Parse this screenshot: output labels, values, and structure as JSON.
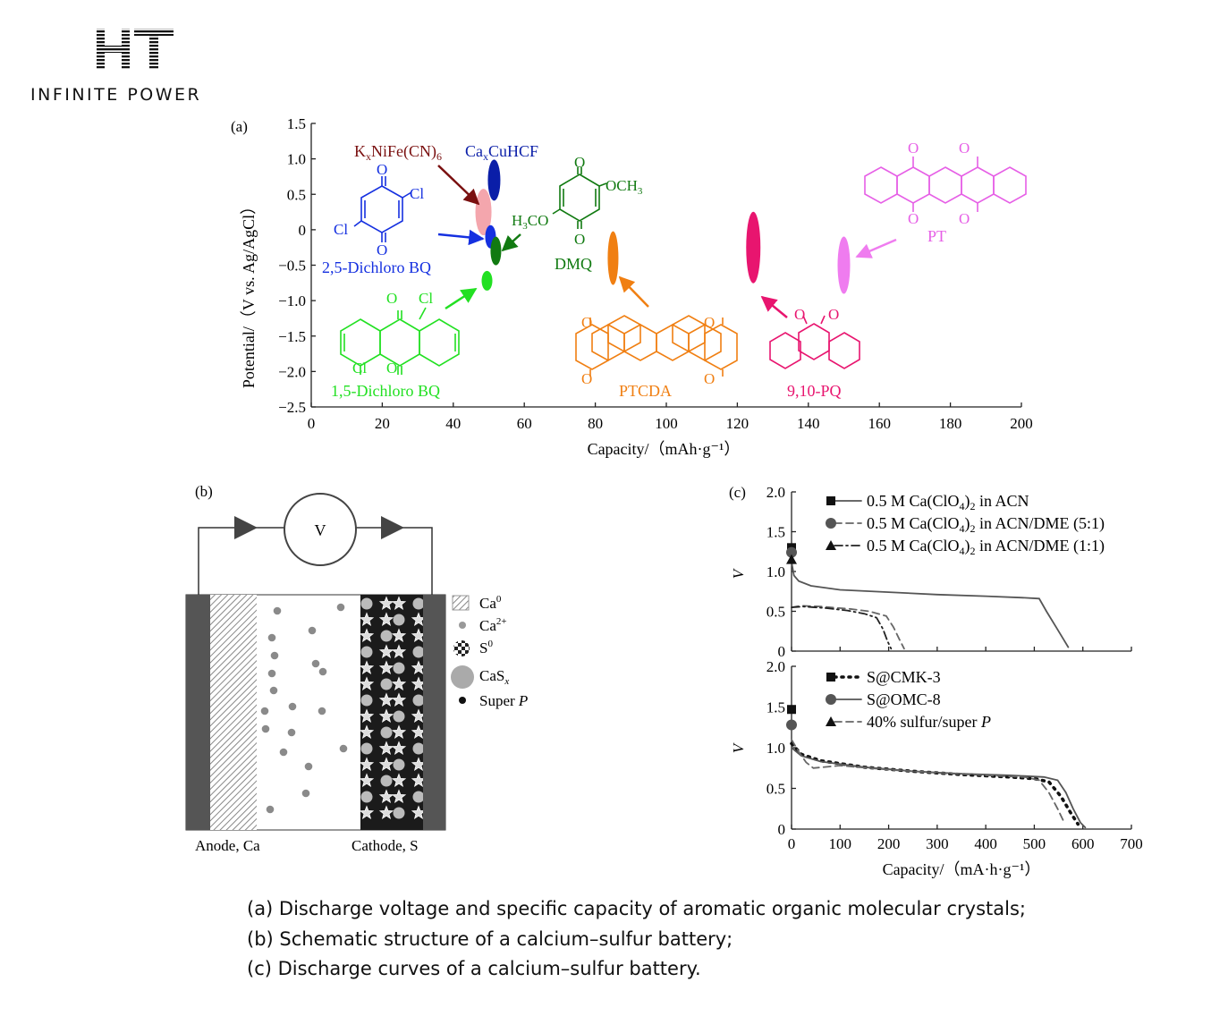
{
  "logo": {
    "mark": "HT",
    "tagline": "INFINITE POWER"
  },
  "caption": [
    "(a) Discharge voltage and specific capacity of aromatic organic molecular crystals;",
    "(b) Schematic structure of a calcium–sulfur battery;",
    "(c) Discharge curves of a calcium–sulfur battery."
  ],
  "panel_a": {
    "tag": "(a)",
    "xlabel": "Capacity/（mAh·g⁻¹）",
    "ylabel": "Potential/（V vs. Ag/AgCl）",
    "labels": {
      "knife": "K",
      "cacuhcf": "Ca",
      "bq": "2,5-Dichloro BQ",
      "dmq": "DMQ",
      "aq": "1,5-Dichloro BQ",
      "ptcda": "PTCDA",
      "pq": "9,10-PQ",
      "pt": "PT",
      "och3": "OCH",
      "h3co": "H",
      "cl": "Cl",
      "o": "O"
    }
  },
  "panel_b": {
    "tag": "(b)",
    "meter": "V",
    "anode": "Anode, Ca",
    "cathode": "Cathode, S",
    "legend": [
      {
        "label": "Ca",
        "sup": "0"
      },
      {
        "label": "Ca",
        "sup": "2+"
      },
      {
        "label": "S",
        "sup": "0"
      },
      {
        "label": "CaS",
        "sub": "x"
      },
      {
        "label": "Super ",
        "italic": "P"
      }
    ]
  },
  "panel_c": {
    "tag": "(c)",
    "ylabel": "V",
    "xlabel": "Capacity/（mA·h·g⁻¹）"
  },
  "chart_data": [
    {
      "type": "scatter",
      "xlabel": "Capacity/（mAh·g⁻¹）",
      "ylabel": "Potential/（V vs. Ag/AgCl）",
      "xlim": [
        0,
        200
      ],
      "ylim": [
        -2.5,
        1.5
      ],
      "xticks": [
        0,
        20,
        40,
        60,
        80,
        100,
        120,
        140,
        160,
        180,
        200
      ],
      "yticks": [
        1.5,
        1.0,
        0.5,
        0,
        -0.5,
        -1.0,
        -1.5,
        -2.0,
        -2.5
      ],
      "points": [
        {
          "name": "KxNiFe(CN)6",
          "x": 48.5,
          "y": 0.25,
          "color": "#f4a6ad"
        },
        {
          "name": "CaxCuHCF",
          "x": 51.5,
          "y": 0.7,
          "color": "#0a1ea8"
        },
        {
          "name": "2,5-Dichloro BQ",
          "x": 50.5,
          "y": -0.1,
          "color": "#1530e0"
        },
        {
          "name": "DMQ",
          "x": 52,
          "y": -0.3,
          "color": "#117a11"
        },
        {
          "name": "1,5-Dichloro BQ",
          "x": 49.5,
          "y": -0.72,
          "color": "#22e022"
        },
        {
          "name": "PTCDA",
          "x": 85,
          "y": -0.4,
          "color": "#f07f12"
        },
        {
          "name": "9,10-PQ",
          "x": 124.5,
          "y": -0.25,
          "color": "#e8156f"
        },
        {
          "name": "PT",
          "x": 150,
          "y": -0.5,
          "color": "#ef7cef"
        }
      ]
    },
    {
      "type": "line",
      "xlim": [
        0,
        700
      ],
      "ylim": [
        0,
        2.0
      ],
      "yticks": [
        0,
        0.5,
        1.0,
        1.5,
        2.0
      ],
      "series": [
        {
          "name": "0.5 M Ca(ClO4)2 in ACN",
          "style": "solid",
          "marker": "square",
          "points": [
            [
              0,
              1.12
            ],
            [
              5,
              0.95
            ],
            [
              15,
              0.88
            ],
            [
              40,
              0.82
            ],
            [
              100,
              0.77
            ],
            [
              200,
              0.74
            ],
            [
              300,
              0.71
            ],
            [
              400,
              0.69
            ],
            [
              480,
              0.67
            ],
            [
              510,
              0.66
            ],
            [
              525,
              0.5
            ],
            [
              545,
              0.3
            ],
            [
              560,
              0.15
            ],
            [
              570,
              0.05
            ]
          ]
        },
        {
          "name": "0.5 M Ca(ClO4)2 in ACN/DME (5:1)",
          "style": "dashed",
          "marker": "circle",
          "points": [
            [
              0,
              0.55
            ],
            [
              20,
              0.57
            ],
            [
              60,
              0.56
            ],
            [
              120,
              0.53
            ],
            [
              160,
              0.5
            ],
            [
              195,
              0.44
            ],
            [
              210,
              0.3
            ],
            [
              222,
              0.15
            ],
            [
              232,
              0.03
            ]
          ]
        },
        {
          "name": "0.5 M Ca(ClO4)2 in ACN/DME (1:1)",
          "style": "dashdot",
          "marker": "triangle",
          "points": [
            [
              0,
              0.55
            ],
            [
              25,
              0.56
            ],
            [
              70,
              0.54
            ],
            [
              115,
              0.51
            ],
            [
              150,
              0.47
            ],
            [
              175,
              0.42
            ],
            [
              188,
              0.28
            ],
            [
              198,
              0.12
            ],
            [
              205,
              0.03
            ]
          ]
        }
      ],
      "start_markers": [
        {
          "series": "0.5 M Ca(ClO4)2 in ACN",
          "y": 1.3
        },
        {
          "series": "0.5 M Ca(ClO4)2 in ACN/DME (5:1)",
          "y": 1.24
        },
        {
          "series": "0.5 M Ca(ClO4)2 in ACN/DME (1:1)",
          "y": 1.15
        }
      ]
    },
    {
      "type": "line",
      "xlabel": "Capacity/（mA·h·g⁻¹）",
      "ylabel": "V",
      "xlim": [
        0,
        700
      ],
      "ylim": [
        0,
        2.0
      ],
      "xticks": [
        0,
        100,
        200,
        300,
        400,
        500,
        600,
        700
      ],
      "yticks": [
        0,
        0.5,
        1.0,
        1.5,
        2.0
      ],
      "series": [
        {
          "name": "S@CMK-3",
          "style": "dotted",
          "marker": "square",
          "points": [
            [
              0,
              1.05
            ],
            [
              20,
              0.92
            ],
            [
              60,
              0.84
            ],
            [
              150,
              0.76
            ],
            [
              250,
              0.71
            ],
            [
              350,
              0.67
            ],
            [
              450,
              0.64
            ],
            [
              500,
              0.62
            ],
            [
              530,
              0.58
            ],
            [
              555,
              0.4
            ],
            [
              575,
              0.2
            ],
            [
              590,
              0.06
            ]
          ]
        },
        {
          "name": "S@OMC-8",
          "style": "solid",
          "marker": "circle",
          "points": [
            [
              0,
              1.0
            ],
            [
              20,
              0.9
            ],
            [
              60,
              0.83
            ],
            [
              150,
              0.76
            ],
            [
              250,
              0.71
            ],
            [
              350,
              0.68
            ],
            [
              450,
              0.66
            ],
            [
              520,
              0.64
            ],
            [
              548,
              0.6
            ],
            [
              565,
              0.45
            ],
            [
              580,
              0.25
            ],
            [
              595,
              0.08
            ],
            [
              605,
              0.02
            ]
          ]
        },
        {
          "name": "40% sulfur/super P",
          "style": "dashed",
          "marker": "triangle",
          "points": [
            [
              0,
              1.1
            ],
            [
              15,
              0.95
            ],
            [
              30,
              0.82
            ],
            [
              45,
              0.75
            ],
            [
              100,
              0.78
            ],
            [
              200,
              0.73
            ],
            [
              300,
              0.69
            ],
            [
              400,
              0.66
            ],
            [
              480,
              0.64
            ],
            [
              510,
              0.6
            ],
            [
              530,
              0.45
            ],
            [
              548,
              0.25
            ],
            [
              560,
              0.1
            ]
          ]
        }
      ],
      "start_markers": [
        {
          "series": "S@CMK-3",
          "y": 1.47
        },
        {
          "series": "S@OMC-8",
          "y": 1.28
        }
      ]
    }
  ]
}
